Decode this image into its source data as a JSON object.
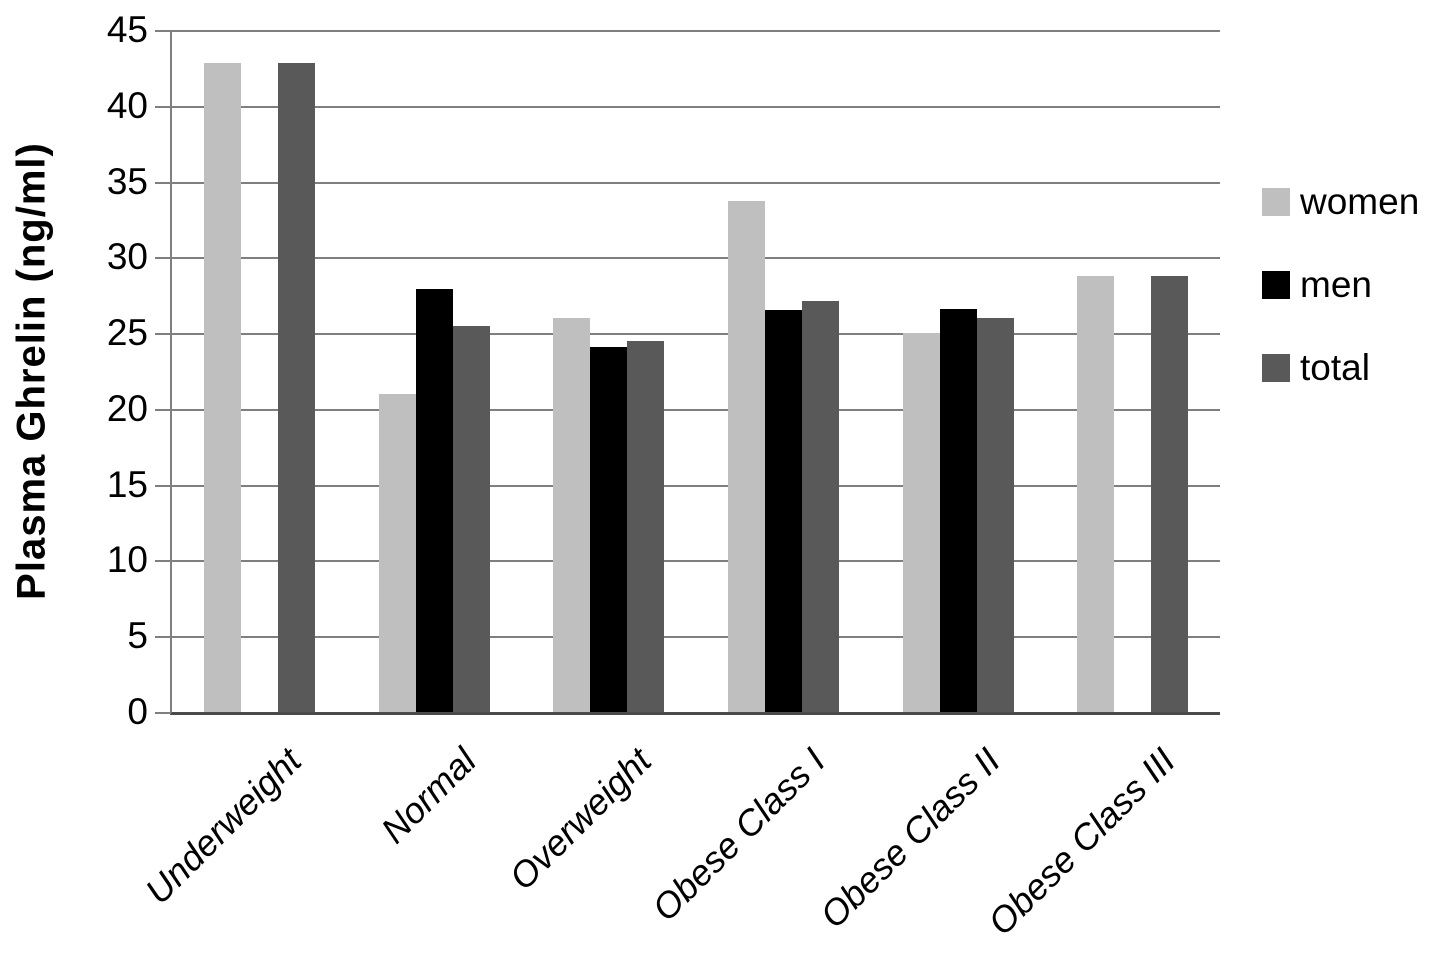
{
  "chart_data": {
    "type": "bar",
    "title": "",
    "xlabel": "",
    "ylabel": "Plasma Ghrelin (ng/ml)",
    "ylim": [
      0,
      45
    ],
    "ytick_interval": 5,
    "yticks": [
      45,
      40,
      35,
      30,
      25,
      20,
      15,
      10,
      5,
      0
    ],
    "grid": true,
    "legend_position": "right",
    "categories": [
      "Underweight",
      "Normal",
      "Overweight",
      "Obese Class I",
      "Obese Class II",
      "Obese Class III"
    ],
    "series": [
      {
        "name": "women",
        "color": "#bfbfbf",
        "values": [
          42.8,
          21.0,
          26.0,
          33.7,
          25.0,
          28.8
        ]
      },
      {
        "name": "men",
        "color": "#000000",
        "values": [
          null,
          27.9,
          24.1,
          26.5,
          26.6,
          null
        ]
      },
      {
        "name": "total",
        "color": "#595959",
        "values": [
          42.8,
          25.5,
          24.5,
          27.1,
          26.0,
          28.8
        ]
      }
    ],
    "axis_colors": {
      "gridline": "#7f7f7f",
      "axis_line": "#7f7f7f",
      "baseline": "#4a4a4a"
    }
  }
}
